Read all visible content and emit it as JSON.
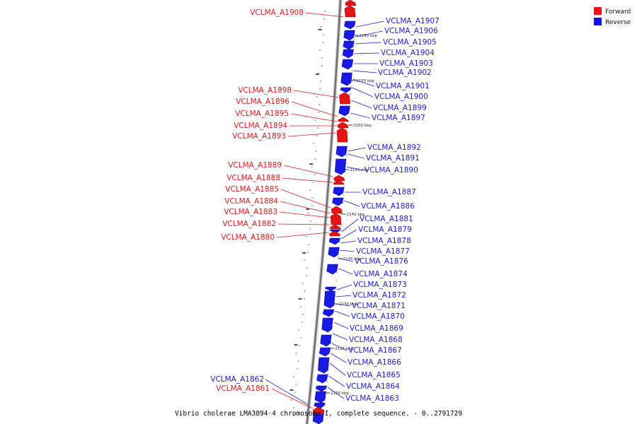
{
  "caption": "Vibrio cholerae LMA3894-4 chromosome I, complete sequence. - 0..2791729",
  "legend": [
    {
      "label": "Forward",
      "color": "#ee1111"
    },
    {
      "label": "Reverse",
      "color": "#1111ee"
    }
  ],
  "ticks": [
    "2160 kbp",
    "2155 kbp",
    "2150 kbp",
    "2145 kbp",
    "2140 kbp",
    "2135 kbp",
    "2130 kbp",
    "2125 kbp",
    "2120 kbp"
  ],
  "forward_genes": [
    "VCLMA_A1908",
    "VCLMA_A1898",
    "VCLMA_A1896",
    "VCLMA_A1895",
    "VCLMA_A1894",
    "VCLMA_A1893",
    "VCLMA_A1889",
    "VCLMA_A1888",
    "VCLMA_A1885",
    "VCLMA_A1884",
    "VCLMA_A1883",
    "VCLMA_A1882",
    "VCLMA_A1880",
    "VCLMA_A1861"
  ],
  "reverse_genes": [
    "VCLMA_A1907",
    "VCLMA_A1906",
    "VCLMA_A1905",
    "VCLMA_A1904",
    "VCLMA_A1903",
    "VCLMA_A1902",
    "VCLMA_A1901",
    "VCLMA_A1900",
    "VCLMA_A1899",
    "VCLMA_A1897",
    "VCLMA_A1892",
    "VCLMA_A1891",
    "VCLMA_A1890",
    "VCLMA_A1887",
    "VCLMA_A1886",
    "VCLMA_A1881",
    "VCLMA_A1879",
    "VCLMA_A1878",
    "VCLMA_A1877",
    "VCLMA_A1876",
    "VCLMA_A1874",
    "VCLMA_A1873",
    "VCLMA_A1872",
    "VCLMA_A1871",
    "VCLMA_A1870",
    "VCLMA_A1869",
    "VCLMA_A1868",
    "VCLMA_A1867",
    "VCLMA_A1866",
    "VCLMA_A1865",
    "VCLMA_A1864",
    "VCLMA_A1863",
    "VCLMA_A1862"
  ]
}
